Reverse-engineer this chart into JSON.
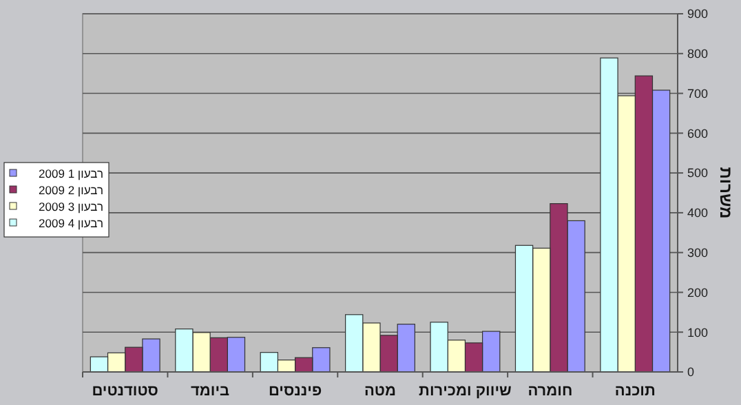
{
  "chart_data": {
    "type": "bar",
    "ylabel": "משרות",
    "categories": [
      "סטודנטים",
      "ביומד",
      "פיננסים",
      "מטה",
      "שיווק ומכירות",
      "חומרה",
      "תוכנה"
    ],
    "series": [
      {
        "name": "רבעון 1 2009",
        "color": "#9999ff",
        "values": [
          83,
          87,
          61,
          120,
          102,
          380,
          708
        ]
      },
      {
        "name": "רבעון 2 2009",
        "color": "#993366",
        "values": [
          62,
          86,
          36,
          92,
          73,
          423,
          744
        ]
      },
      {
        "name": "רבעון 3 2009",
        "color": "#ffffcc",
        "values": [
          48,
          99,
          30,
          123,
          80,
          311,
          694
        ]
      },
      {
        "name": "רבעון 4 2009",
        "color": "#ccffff",
        "values": [
          38,
          108,
          49,
          144,
          125,
          318,
          789
        ]
      }
    ],
    "ylim": [
      0,
      900
    ],
    "yticks": [
      0,
      100,
      200,
      300,
      400,
      500,
      600,
      700,
      800,
      900
    ],
    "grid": "y",
    "legend": "left"
  }
}
